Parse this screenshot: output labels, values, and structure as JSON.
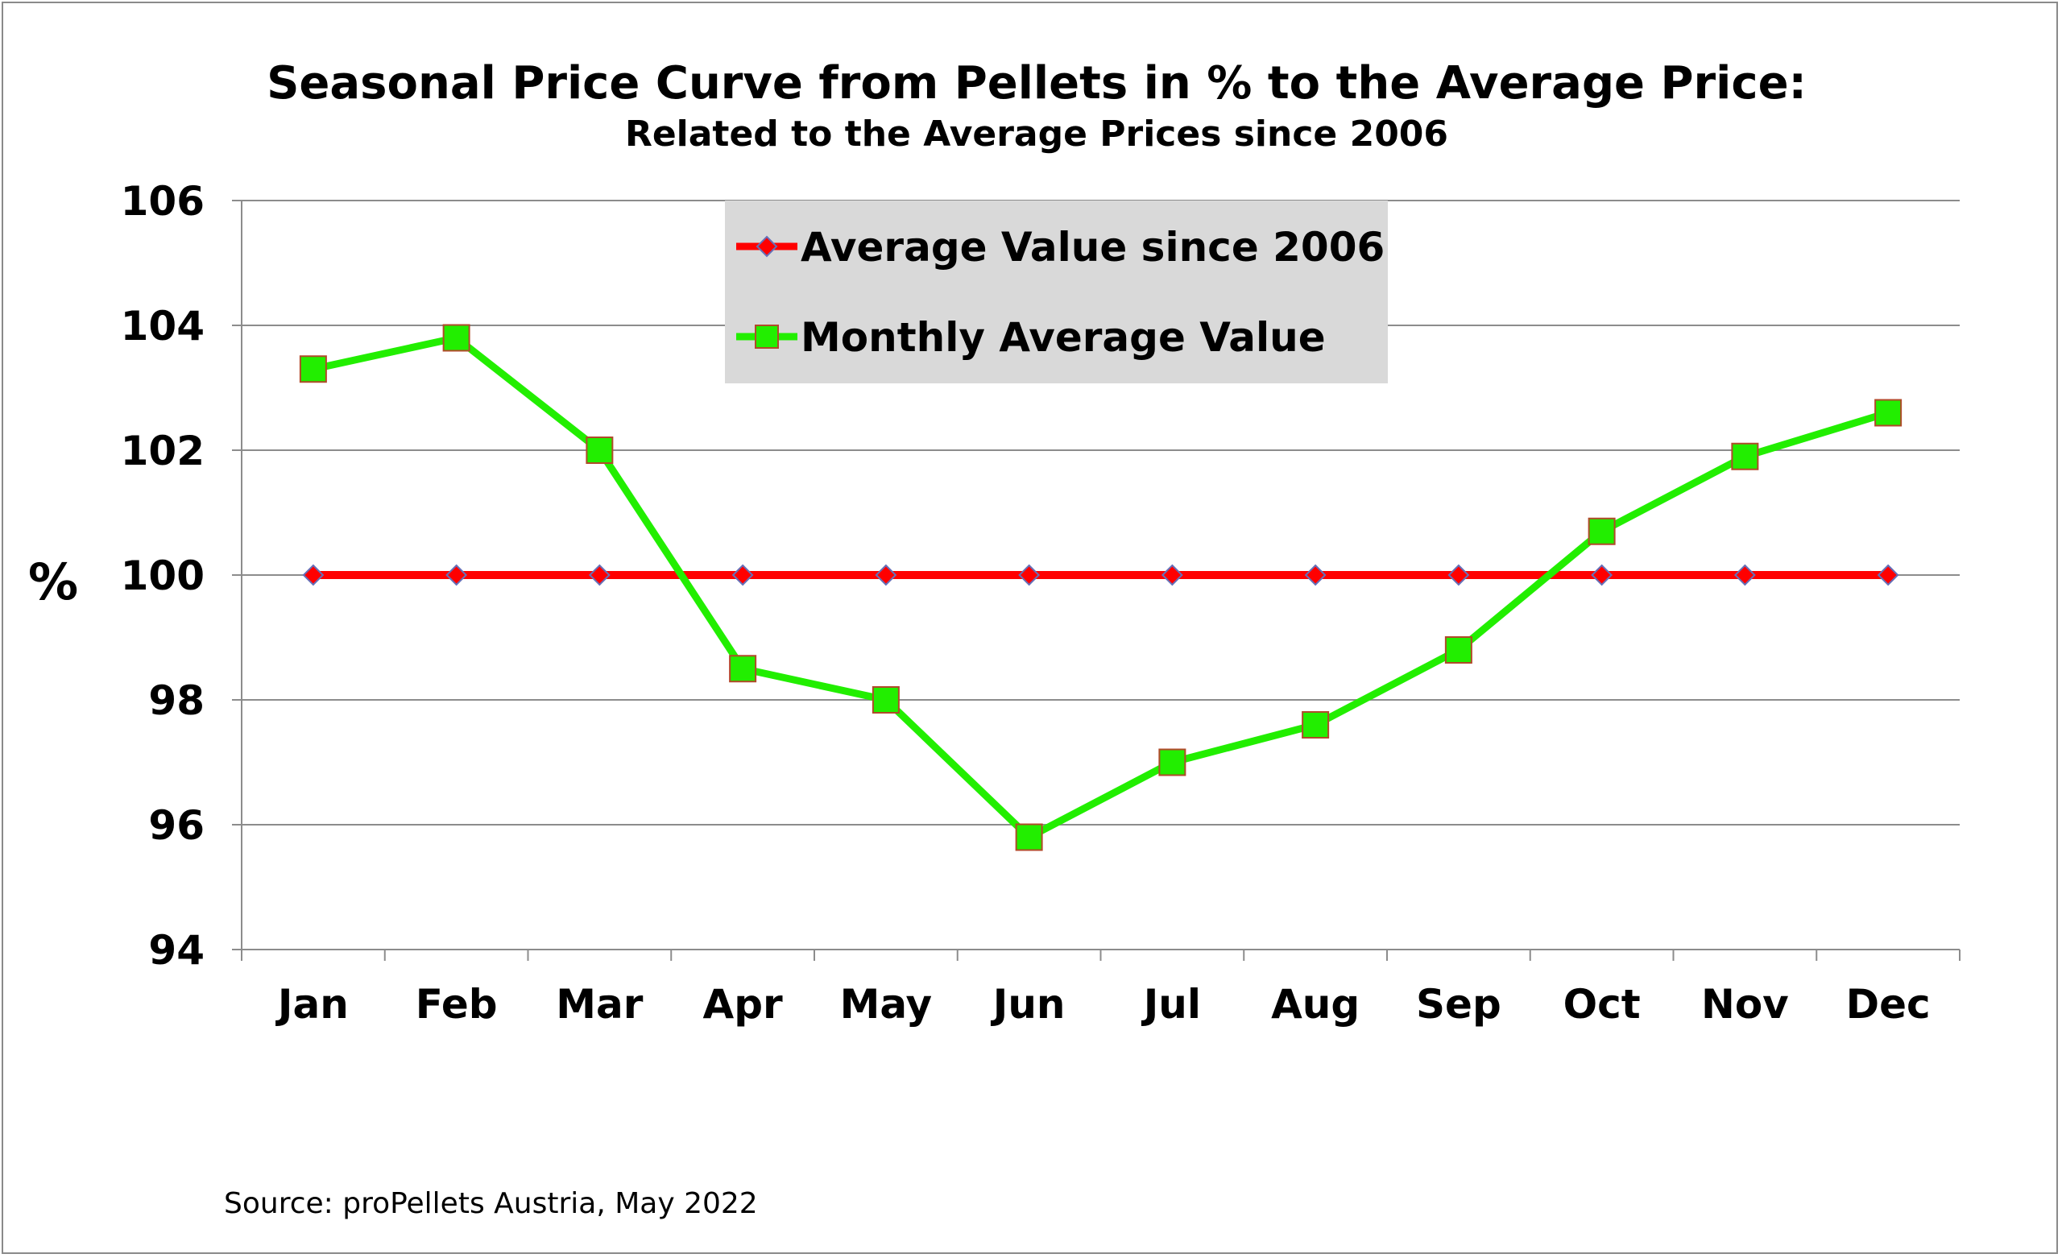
{
  "chart_data": {
    "type": "line",
    "title": "Seasonal Price Curve from Pellets in % to the Average Price:",
    "subtitle": "Related to the Average Prices since 2006",
    "xlabel": "",
    "ylabel": "%",
    "categories": [
      "Jan",
      "Feb",
      "Mar",
      "Apr",
      "May",
      "Jun",
      "Jul",
      "Aug",
      "Sep",
      "Oct",
      "Nov",
      "Dec"
    ],
    "ylim": [
      94,
      106
    ],
    "yticks": [
      "94",
      "96",
      "98",
      "100",
      "102",
      "104",
      "106"
    ],
    "grid": true,
    "legend_position": "top-center",
    "series": [
      {
        "name": "Average Value since 2006",
        "color": "#ff0000",
        "marker": "diamond",
        "values": [
          100,
          100,
          100,
          100,
          100,
          100,
          100,
          100,
          100,
          100,
          100,
          100
        ]
      },
      {
        "name": "Monthly Average Value",
        "color": "#22ee00",
        "marker": "square",
        "values": [
          103.3,
          103.8,
          102.0,
          98.5,
          98.0,
          95.8,
          97.0,
          97.6,
          98.8,
          100.7,
          101.9,
          102.6
        ]
      }
    ],
    "source": "Source: proPellets Austria, May 2022"
  }
}
